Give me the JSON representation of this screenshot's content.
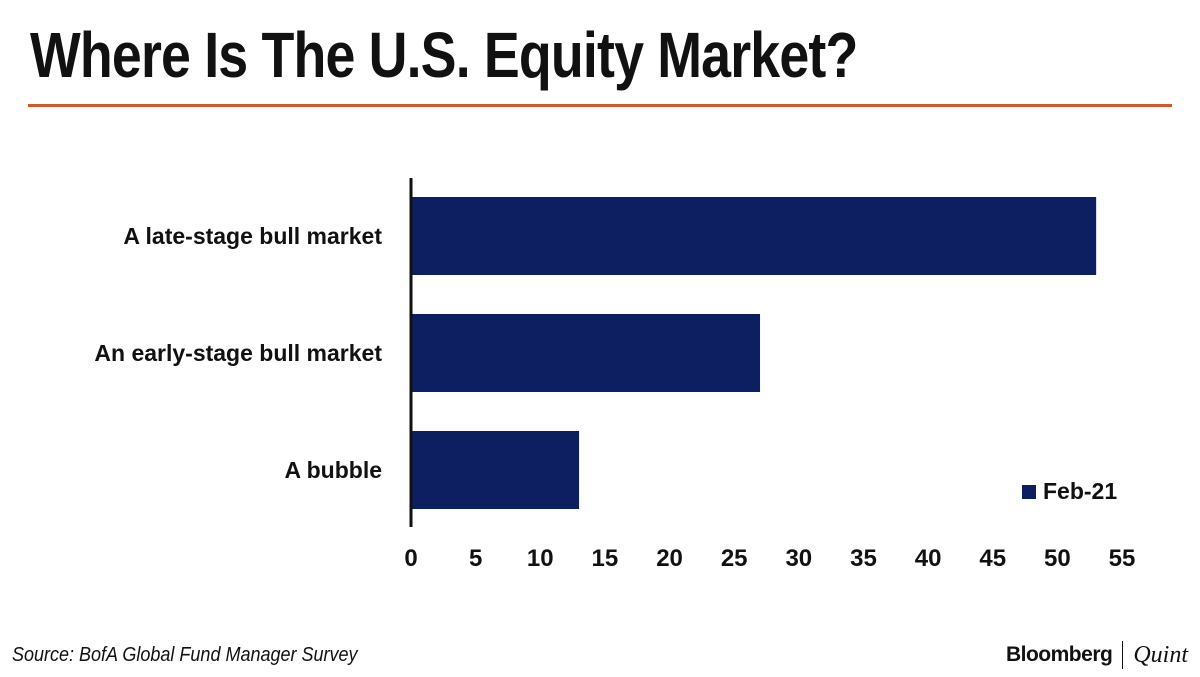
{
  "colors": {
    "bar": "#0d1f61",
    "rule": "#d4572a",
    "text": "#111111"
  },
  "source": "Source: BofA Global Fund Manager Survey",
  "brand": {
    "name": "Bloomberg",
    "partner": "Quint"
  },
  "chart_data": {
    "type": "bar",
    "orientation": "horizontal",
    "title": "Where Is The U.S. Equity Market?",
    "categories": [
      "A late-stage bull market",
      "An early-stage bull market",
      "A bubble"
    ],
    "series": [
      {
        "name": "Feb-21",
        "values": [
          53,
          27,
          13
        ]
      }
    ],
    "xlim": [
      0,
      55
    ],
    "xticks": [
      0,
      5,
      10,
      15,
      20,
      25,
      30,
      35,
      40,
      45,
      50,
      55
    ],
    "xlabel": "",
    "ylabel": "",
    "grid": false,
    "legend": "bottom-right"
  }
}
